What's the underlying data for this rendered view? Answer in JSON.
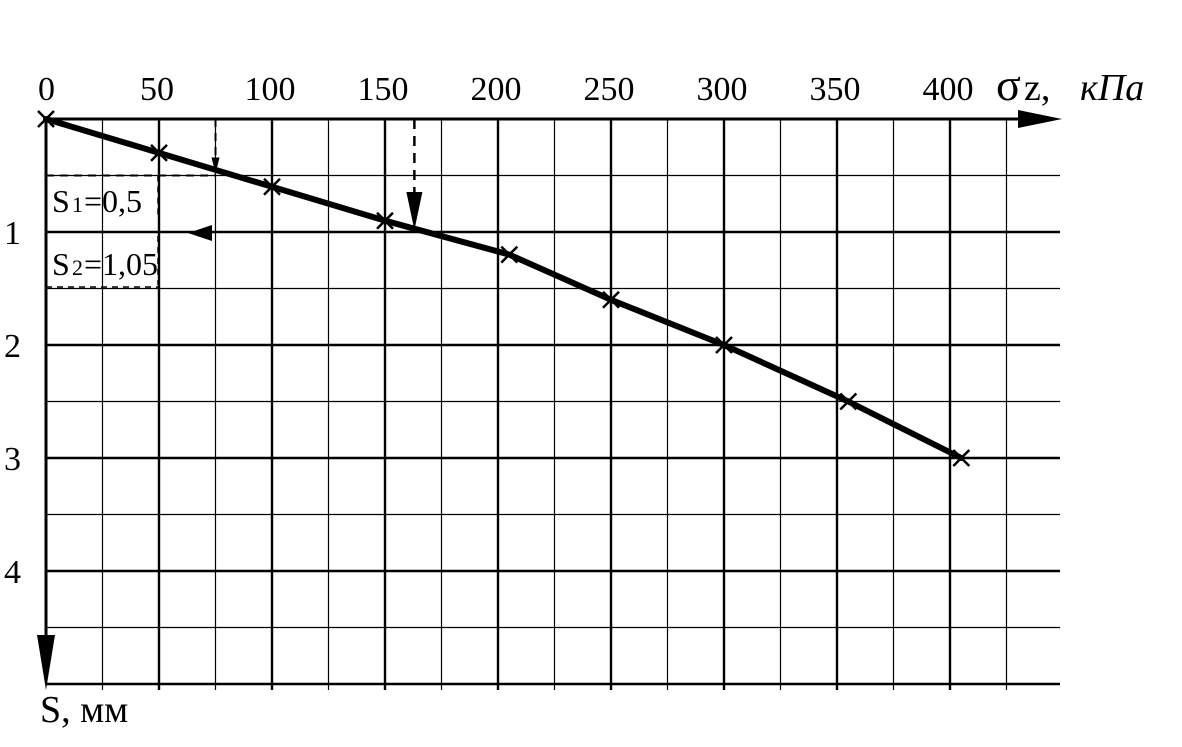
{
  "chart_data": {
    "type": "line",
    "x_axis": {
      "symbol": "σ",
      "label_var": "z,",
      "label_unit": "кПа",
      "ticks": [
        "0",
        "50",
        "100",
        "150",
        "200",
        "250",
        "300",
        "350",
        "400"
      ],
      "range": [
        0,
        450
      ],
      "position": "top"
    },
    "y_axis": {
      "label": "S, мм",
      "ticks": [
        "1",
        "2",
        "3",
        "4"
      ],
      "range": [
        0,
        5
      ],
      "direction": "downward"
    },
    "grid": true,
    "series": [
      {
        "marker": "x",
        "x": [
          0,
          50,
          100,
          150,
          205,
          250,
          300,
          355,
          405
        ],
        "y": [
          0,
          0.3,
          0.6,
          0.9,
          1.2,
          1.6,
          2.0,
          2.5,
          3.0
        ]
      }
    ],
    "annotations": [
      {
        "s_main": "S",
        "s_sub": "1",
        "s_value": "=0,5",
        "x_pressure": 75,
        "y_settlement": 0.5
      },
      {
        "s_main": "S",
        "s_sub": "2",
        "s_value": "=1,05",
        "x_pressure": 163,
        "y_settlement": 1.0
      }
    ]
  }
}
